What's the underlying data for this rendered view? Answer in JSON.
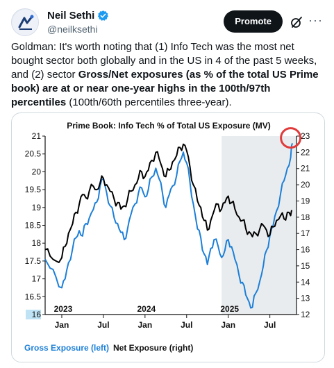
{
  "author": {
    "name": "Neil Sethi",
    "handle": "@neilksethi"
  },
  "actions": {
    "promote_label": "Promote",
    "grok_icon": "grok-slash-icon",
    "more_icon": "more-dots-icon"
  },
  "tweet": {
    "p1": "Goldman: It's worth noting that (1) Info Tech was the most net bought sector both globally and in the US in 4 of the past 5 weeks, and (2) sector ",
    "bold1": "Gross/Net exposures (as % of the total US Prime book) are at or near one-year highs in the 100th/97th percentiles",
    "p2": " (100th/60th percentiles three-year)."
  },
  "chart_data": {
    "type": "line",
    "title": "Prime Book: Info Tech % of Total US Exposure (MV)",
    "left_axis": {
      "ylim": [
        16,
        21
      ],
      "ticks": [
        "21",
        "20.5",
        "20",
        "19.5",
        "19",
        "18.5",
        "18",
        "17.5",
        "17",
        "16.5",
        "16"
      ]
    },
    "right_axis": {
      "ylim": [
        12,
        23
      ],
      "ticks": [
        "23",
        "22",
        "21",
        "20",
        "19",
        "18",
        "17",
        "16",
        "15",
        "14",
        "13",
        "12"
      ]
    },
    "x_ticks": [
      "2023",
      "Jul",
      "2024",
      "Jul",
      "2025",
      "Jan",
      "Jul"
    ],
    "x_tick_labels_top": [
      "2023",
      "2024",
      "2025"
    ],
    "x_tick_labels_bottom": [
      "Jan",
      "Jul",
      "Jan",
      "Jul",
      "Jan",
      "Jul"
    ],
    "shaded_from": 2024.92,
    "series": [
      {
        "name": "Gross Exposure (left)",
        "color": "#1c7fd8",
        "axis": "left",
        "points": [
          [
            2022.8,
            17.55
          ],
          [
            2022.86,
            17.3
          ],
          [
            2022.93,
            17.05
          ],
          [
            2023.0,
            16.75
          ],
          [
            2023.04,
            17.0
          ],
          [
            2023.08,
            17.45
          ],
          [
            2023.13,
            17.85
          ],
          [
            2023.17,
            18.15
          ],
          [
            2023.21,
            18.35
          ],
          [
            2023.25,
            18.2
          ],
          [
            2023.29,
            18.55
          ],
          [
            2023.33,
            18.7
          ],
          [
            2023.38,
            18.95
          ],
          [
            2023.42,
            19.15
          ],
          [
            2023.46,
            19.6
          ],
          [
            2023.5,
            19.8
          ],
          [
            2023.54,
            19.4
          ],
          [
            2023.58,
            19.05
          ],
          [
            2023.63,
            18.7
          ],
          [
            2023.67,
            18.55
          ],
          [
            2023.71,
            18.3
          ],
          [
            2023.75,
            18.1
          ],
          [
            2023.79,
            18.4
          ],
          [
            2023.83,
            18.8
          ],
          [
            2023.88,
            19.1
          ],
          [
            2023.92,
            19.4
          ],
          [
            2023.96,
            19.55
          ],
          [
            2024.0,
            19.3
          ],
          [
            2024.04,
            19.5
          ],
          [
            2024.08,
            19.85
          ],
          [
            2024.13,
            20.1
          ],
          [
            2024.17,
            19.8
          ],
          [
            2024.21,
            19.4
          ],
          [
            2024.25,
            19.0
          ],
          [
            2024.29,
            19.35
          ],
          [
            2024.33,
            19.6
          ],
          [
            2024.38,
            19.9
          ],
          [
            2024.42,
            20.3
          ],
          [
            2024.46,
            20.55
          ],
          [
            2024.5,
            20.25
          ],
          [
            2024.54,
            19.7
          ],
          [
            2024.58,
            19.1
          ],
          [
            2024.63,
            18.4
          ],
          [
            2024.67,
            18.15
          ],
          [
            2024.71,
            17.7
          ],
          [
            2024.75,
            17.4
          ],
          [
            2024.79,
            17.85
          ],
          [
            2024.83,
            18.1
          ],
          [
            2024.88,
            17.9
          ],
          [
            2024.92,
            17.6
          ],
          [
            2024.96,
            17.8
          ],
          [
            2025.0,
            18.1
          ],
          [
            2025.04,
            17.9
          ],
          [
            2025.08,
            17.55
          ],
          [
            2025.13,
            17.1
          ],
          [
            2025.17,
            16.9
          ],
          [
            2025.21,
            16.55
          ],
          [
            2025.25,
            16.35
          ],
          [
            2025.29,
            16.2
          ],
          [
            2025.33,
            16.6
          ],
          [
            2025.38,
            16.95
          ],
          [
            2025.42,
            17.35
          ],
          [
            2025.46,
            17.8
          ],
          [
            2025.5,
            18.2
          ],
          [
            2025.54,
            18.5
          ],
          [
            2025.58,
            18.9
          ],
          [
            2025.63,
            19.4
          ],
          [
            2025.67,
            19.75
          ],
          [
            2025.71,
            20.1
          ],
          [
            2025.75,
            20.4
          ],
          [
            2025.77,
            20.8
          ]
        ]
      },
      {
        "name": "Net Exposure (right)",
        "color": "#000000",
        "axis": "right",
        "points": [
          [
            2022.8,
            16.0
          ],
          [
            2022.86,
            15.6
          ],
          [
            2022.93,
            15.3
          ],
          [
            2023.0,
            15.5
          ],
          [
            2023.04,
            16.2
          ],
          [
            2023.08,
            17.0
          ],
          [
            2023.13,
            17.6
          ],
          [
            2023.17,
            18.3
          ],
          [
            2023.21,
            18.8
          ],
          [
            2023.25,
            19.4
          ],
          [
            2023.29,
            19.2
          ],
          [
            2023.33,
            19.6
          ],
          [
            2023.38,
            19.9
          ],
          [
            2023.42,
            19.7
          ],
          [
            2023.46,
            20.1
          ],
          [
            2023.5,
            20.4
          ],
          [
            2023.54,
            20.0
          ],
          [
            2023.58,
            19.6
          ],
          [
            2023.63,
            19.1
          ],
          [
            2023.67,
            18.9
          ],
          [
            2023.71,
            18.5
          ],
          [
            2023.75,
            18.7
          ],
          [
            2023.79,
            19.1
          ],
          [
            2023.83,
            19.6
          ],
          [
            2023.88,
            20.0
          ],
          [
            2023.92,
            20.4
          ],
          [
            2023.96,
            20.8
          ],
          [
            2024.0,
            20.5
          ],
          [
            2024.04,
            20.9
          ],
          [
            2024.08,
            21.5
          ],
          [
            2024.13,
            22.0
          ],
          [
            2024.17,
            21.6
          ],
          [
            2024.21,
            21.0
          ],
          [
            2024.25,
            20.5
          ],
          [
            2024.29,
            20.9
          ],
          [
            2024.33,
            21.4
          ],
          [
            2024.38,
            21.8
          ],
          [
            2024.42,
            22.3
          ],
          [
            2024.46,
            22.5
          ],
          [
            2024.5,
            22.1
          ],
          [
            2024.54,
            21.1
          ],
          [
            2024.58,
            20.0
          ],
          [
            2024.63,
            19.0
          ],
          [
            2024.67,
            18.6
          ],
          [
            2024.71,
            17.8
          ],
          [
            2024.75,
            17.2
          ],
          [
            2024.79,
            17.8
          ],
          [
            2024.83,
            18.4
          ],
          [
            2024.88,
            18.8
          ],
          [
            2024.92,
            18.5
          ],
          [
            2024.96,
            18.9
          ],
          [
            2025.0,
            19.3
          ],
          [
            2025.04,
            18.9
          ],
          [
            2025.08,
            18.5
          ],
          [
            2025.13,
            18.0
          ],
          [
            2025.17,
            17.8
          ],
          [
            2025.21,
            17.3
          ],
          [
            2025.25,
            17.1
          ],
          [
            2025.29,
            16.8
          ],
          [
            2025.33,
            17.0
          ],
          [
            2025.38,
            17.3
          ],
          [
            2025.42,
            17.5
          ],
          [
            2025.46,
            17.2
          ],
          [
            2025.5,
            16.9
          ],
          [
            2025.54,
            17.4
          ],
          [
            2025.58,
            17.8
          ],
          [
            2025.63,
            18.1
          ],
          [
            2025.67,
            17.9
          ],
          [
            2025.71,
            18.3
          ],
          [
            2025.75,
            18.1
          ],
          [
            2025.77,
            18.4
          ]
        ]
      }
    ],
    "highlight_circle": {
      "x": 2025.75,
      "y_left": 20.95,
      "color": "#e03b3b"
    }
  }
}
